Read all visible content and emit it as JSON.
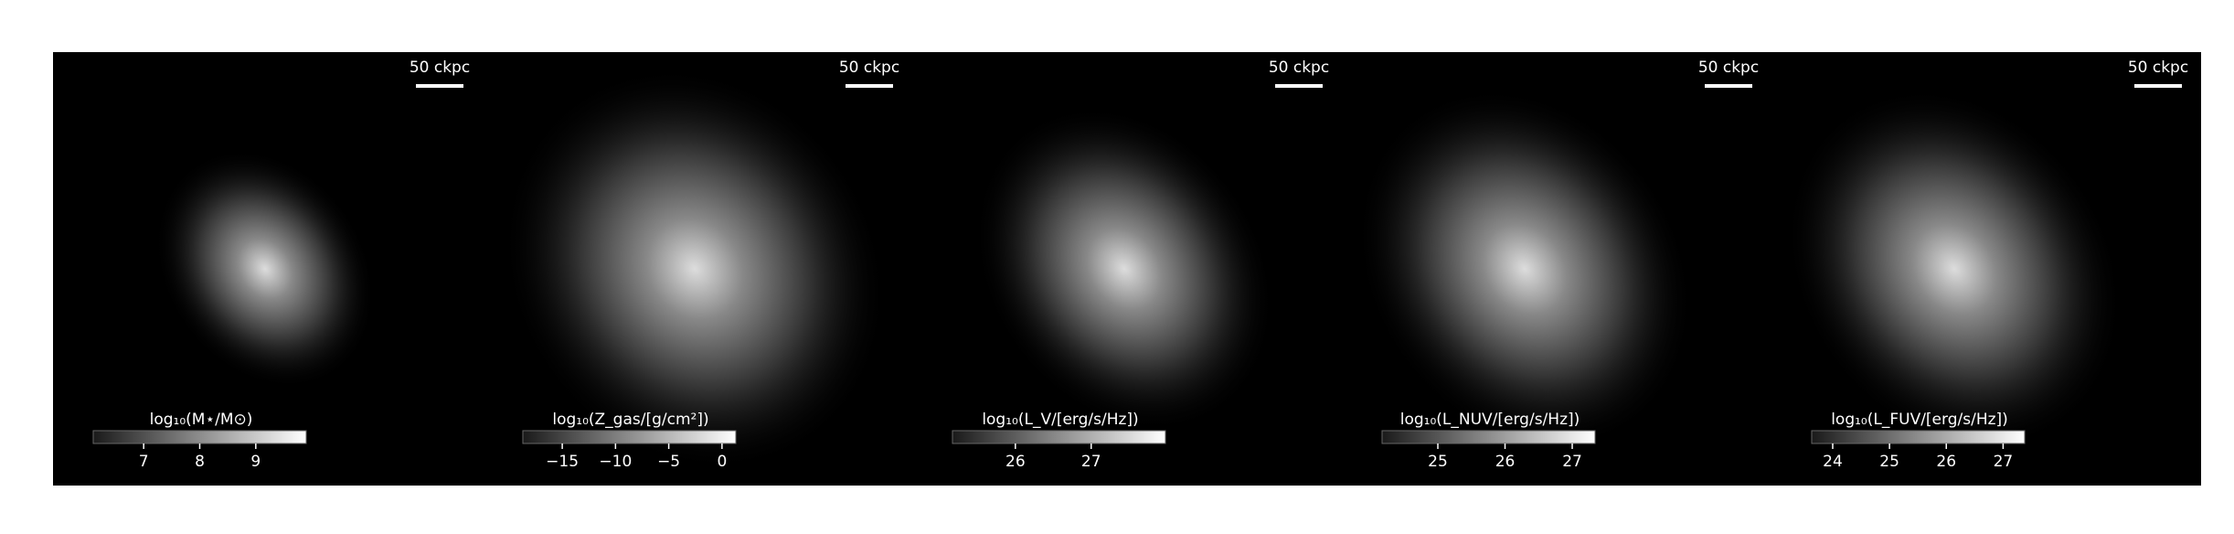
{
  "chart_data": [
    {
      "type": "image",
      "scale_label": "50 ckpc",
      "colorbar_label": "log₁₀(M⋆/M⊙)",
      "clim": [
        6.1,
        9.9
      ],
      "cticks": [
        7,
        8,
        9
      ]
    },
    {
      "type": "image",
      "scale_label": "50 ckpc",
      "colorbar_label": "log₁₀(Z_gas/[g/cm²])",
      "clim": [
        -18.7,
        1.3
      ],
      "cticks": [
        {
          "value": -15,
          "label": "−15"
        },
        {
          "value": -10,
          "label": "−10"
        },
        {
          "value": -5,
          "label": "−5"
        },
        0
      ]
    },
    {
      "type": "image",
      "scale_label": "50 ckpc",
      "colorbar_label": "log₁₀(L_V/[erg/s/Hz])",
      "clim": [
        25.17,
        27.98
      ],
      "cticks": [
        26,
        27
      ]
    },
    {
      "type": "image",
      "scale_label": "50 ckpc",
      "colorbar_label": "log₁₀(L_NUV/[erg/s/Hz])",
      "clim": [
        24.17,
        27.34
      ],
      "cticks": [
        25,
        26,
        27
      ]
    },
    {
      "type": "image",
      "scale_label": "50 ckpc",
      "colorbar_label": "log₁₀(L_FUV/[erg/s/Hz])",
      "clim": [
        23.63,
        27.38
      ],
      "cticks": [
        24,
        25,
        26,
        27
      ]
    }
  ]
}
